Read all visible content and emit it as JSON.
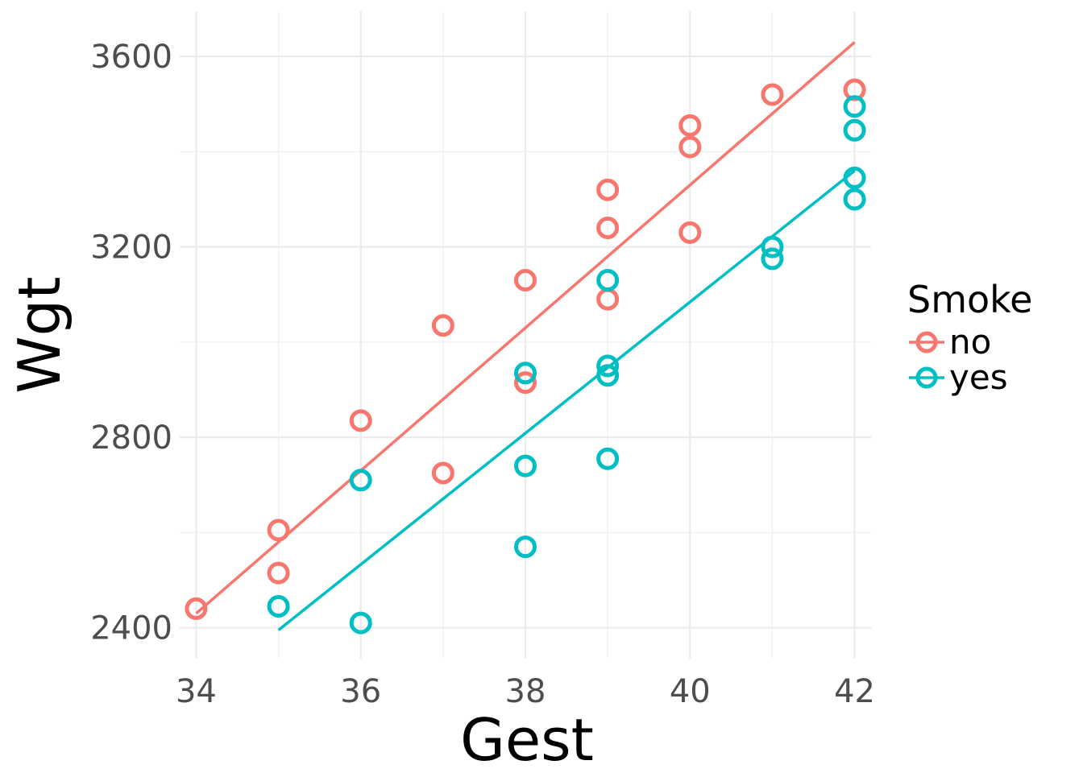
{
  "chart_data": {
    "type": "scatter",
    "title": "",
    "xlabel": "Gest",
    "ylabel": "Wgt",
    "xlim": [
      33.8,
      42.2
    ],
    "ylim": [
      2335,
      3695
    ],
    "x_ticks": [
      34,
      36,
      38,
      40,
      42
    ],
    "x_tick_labels": [
      "34",
      "36",
      "38",
      "40",
      "42"
    ],
    "x_minor_ticks": [
      35,
      37,
      39,
      41
    ],
    "y_ticks": [
      2400,
      2800,
      3200,
      3600
    ],
    "y_tick_labels": [
      "2400",
      "2800",
      "3200",
      "3600"
    ],
    "y_minor_ticks": [
      2600,
      3000,
      3400
    ],
    "grid": true,
    "legend": {
      "title": "Smoke",
      "position": "right",
      "entries": [
        "no",
        "yes"
      ]
    },
    "series": [
      {
        "name": "no",
        "color": "#F8766D",
        "points": [
          [
            34,
            2440
          ],
          [
            35,
            2605
          ],
          [
            35,
            2515
          ],
          [
            36,
            2835
          ],
          [
            37,
            3035
          ],
          [
            37,
            2725
          ],
          [
            38,
            3130
          ],
          [
            38,
            2915
          ],
          [
            39,
            3320
          ],
          [
            39,
            3240
          ],
          [
            39,
            3090
          ],
          [
            40,
            3455
          ],
          [
            40,
            3410
          ],
          [
            40,
            3230
          ],
          [
            41,
            3520
          ],
          [
            42,
            3530
          ]
        ],
        "fit_line": {
          "x": [
            34,
            42
          ],
          "y": [
            2430,
            3630
          ]
        }
      },
      {
        "name": "yes",
        "color": "#00BFC4",
        "points": [
          [
            35,
            2445
          ],
          [
            36,
            2710
          ],
          [
            36,
            2410
          ],
          [
            38,
            2935
          ],
          [
            38,
            2740
          ],
          [
            38,
            2570
          ],
          [
            39,
            3130
          ],
          [
            39,
            2950
          ],
          [
            39,
            2930
          ],
          [
            39,
            2755
          ],
          [
            41,
            3200
          ],
          [
            41,
            3175
          ],
          [
            42,
            3495
          ],
          [
            42,
            3445
          ],
          [
            42,
            3345
          ],
          [
            42,
            3300
          ]
        ],
        "fit_line": {
          "x": [
            35,
            42
          ],
          "y": [
            2395,
            3360
          ]
        }
      }
    ]
  }
}
